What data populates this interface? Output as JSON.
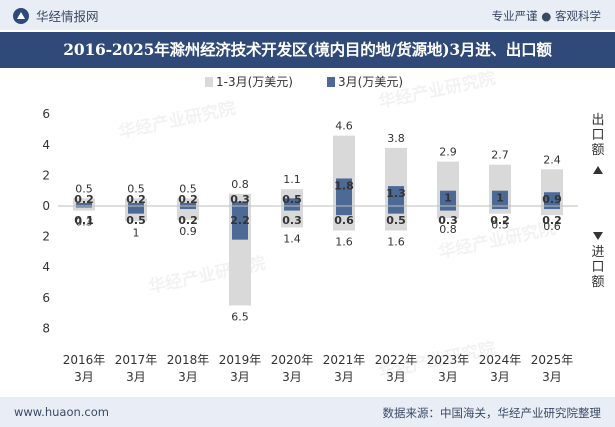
{
  "header": {
    "brand": "华经情报网",
    "slogan": "专业严谨 ● 客观科学"
  },
  "title": "2016-2025年滁州经济技术开发区(境内目的地/货源地)3月进、出口额",
  "footer": {
    "website": "www.huaon.com",
    "source": "数据来源：中国海关，华经产业研究院整理"
  },
  "watermark": "华经产业研究院",
  "colors": {
    "cumulative": "#d9d9d9",
    "monthly": "#4d6a96",
    "header_bg": "#2f4a78",
    "bar_bg": "#e9eef6",
    "text": "#333333"
  },
  "chart_data": {
    "type": "bar",
    "categories": [
      "2016年\n3月",
      "2017年\n3月",
      "2018年\n3月",
      "2019年\n3月",
      "2020年\n3月",
      "2021年\n3月",
      "2022年\n3月",
      "2023年\n3月",
      "2024年\n3月",
      "2025年\n3月"
    ],
    "series": [
      {
        "name": "1-3月(万美元)",
        "export": [
          0.5,
          0.5,
          0.5,
          0.8,
          1.1,
          4.6,
          3.8,
          2.9,
          2.7,
          2.4
        ],
        "import": [
          0.3,
          1,
          0.9,
          6.5,
          1.4,
          1.6,
          1.6,
          0.8,
          0.5,
          0.6
        ]
      },
      {
        "name": "3月(万美元)",
        "export": [
          0.2,
          0.2,
          0.2,
          0.3,
          0.5,
          1.8,
          1.3,
          1,
          1,
          0.9
        ],
        "import": [
          0.1,
          0.5,
          0.2,
          2.2,
          0.3,
          0.6,
          0.5,
          0.3,
          0.2,
          0.2
        ]
      }
    ],
    "y_ticks_up": [
      0,
      2,
      4,
      6
    ],
    "y_ticks_down": [
      2,
      4,
      6,
      8
    ],
    "ylim": [
      -8,
      6
    ],
    "export_label": "出口额",
    "import_label": "进口额",
    "legend_position": "top"
  }
}
